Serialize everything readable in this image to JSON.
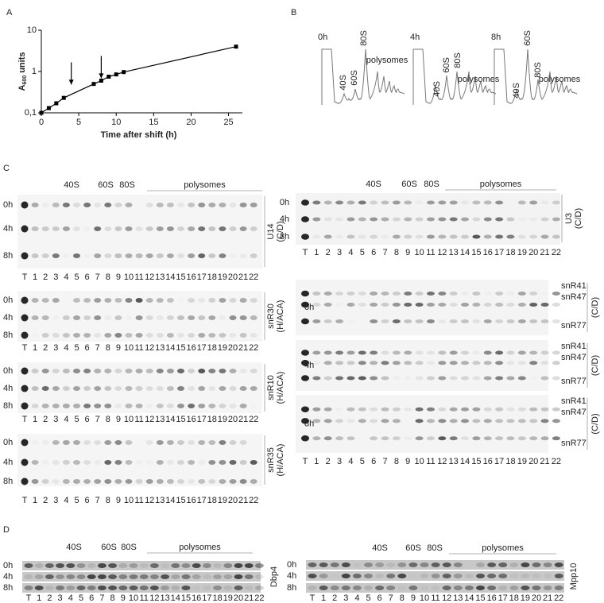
{
  "lanes": [
    "T",
    "1",
    "2",
    "3",
    "4",
    "5",
    "6",
    "7",
    "8",
    "9",
    "10",
    "11",
    "12",
    "13",
    "14",
    "15",
    "16",
    "17",
    "18",
    "19",
    "20",
    "21",
    "22"
  ],
  "panels": {
    "A": {
      "label": "A",
      "chart": {
        "type": "line",
        "x": [
          0,
          1,
          2,
          3,
          7,
          8,
          9,
          10,
          11,
          26
        ],
        "values": [
          0.1,
          0.13,
          0.17,
          0.23,
          0.5,
          0.6,
          0.75,
          0.85,
          0.97,
          4
        ],
        "xlim": [
          0,
          26
        ],
        "ylim": [
          0.1,
          10
        ],
        "log_y": true,
        "xticks": [
          0,
          5,
          10,
          15,
          20,
          25
        ],
        "yticks": [
          {
            "value": 0.1,
            "label": "0,1"
          },
          1,
          10
        ],
        "xlabel": "Time after shift (h)",
        "ylabel": {
          "main": "A",
          "sub": "600",
          "rest": " units"
        },
        "arrows_x": [
          4,
          8
        ],
        "color": "#000000"
      }
    },
    "B": {
      "label": "B",
      "profiles": [
        {
          "time": "0h",
          "labels": [
            "40S",
            "60S",
            "80S",
            "polysomes"
          ]
        },
        {
          "time": "4h",
          "labels": [
            "40S",
            "60S",
            "80S",
            "polysomes"
          ]
        },
        {
          "time": "8h",
          "labels": [
            "40S",
            "60S",
            "80S",
            "polysomes"
          ]
        }
      ]
    },
    "C": {
      "label": "C",
      "left": {
        "fractions": [
          "40S",
          "60S",
          "80S",
          "polysomes"
        ],
        "blots": [
          {
            "name": "U14",
            "class": "(C/D)",
            "times": [
              "0h",
              "4h",
              "8h"
            ]
          },
          {
            "name": "snR30",
            "class": "(H/ACA)",
            "times": [
              "0h",
              "4h",
              "8h"
            ]
          },
          {
            "name": "snR10",
            "class": "(H/ACA)",
            "times": [
              "0h",
              "4h",
              "8h"
            ]
          },
          {
            "name": "snR35",
            "class": "(H/ACA)",
            "times": [
              "0h",
              "4h",
              "8h"
            ]
          }
        ]
      },
      "right": {
        "fractions": [
          "40S",
          "60S",
          "80S",
          "polysomes"
        ],
        "u3": {
          "name": "U3",
          "class": "(C/D)",
          "times": [
            "0h",
            "4h",
            "8h"
          ]
        },
        "multi": {
          "class": "(C/D)",
          "times": [
            "0h",
            "4h",
            "8h"
          ],
          "rnas": [
            "snR41",
            "snR47",
            "snR77"
          ]
        }
      }
    },
    "D": {
      "label": "D",
      "left": {
        "fractions": [
          "40S",
          "60S",
          "80S",
          "polysomes"
        ],
        "name": "Dbp4",
        "times": [
          "0h",
          "4h",
          "8h"
        ]
      },
      "right": {
        "fractions": [
          "40S",
          "60S",
          "80S",
          "polysomes"
        ],
        "name": "Mpp10",
        "times": [
          "0h",
          "4h",
          "8h"
        ]
      }
    }
  }
}
